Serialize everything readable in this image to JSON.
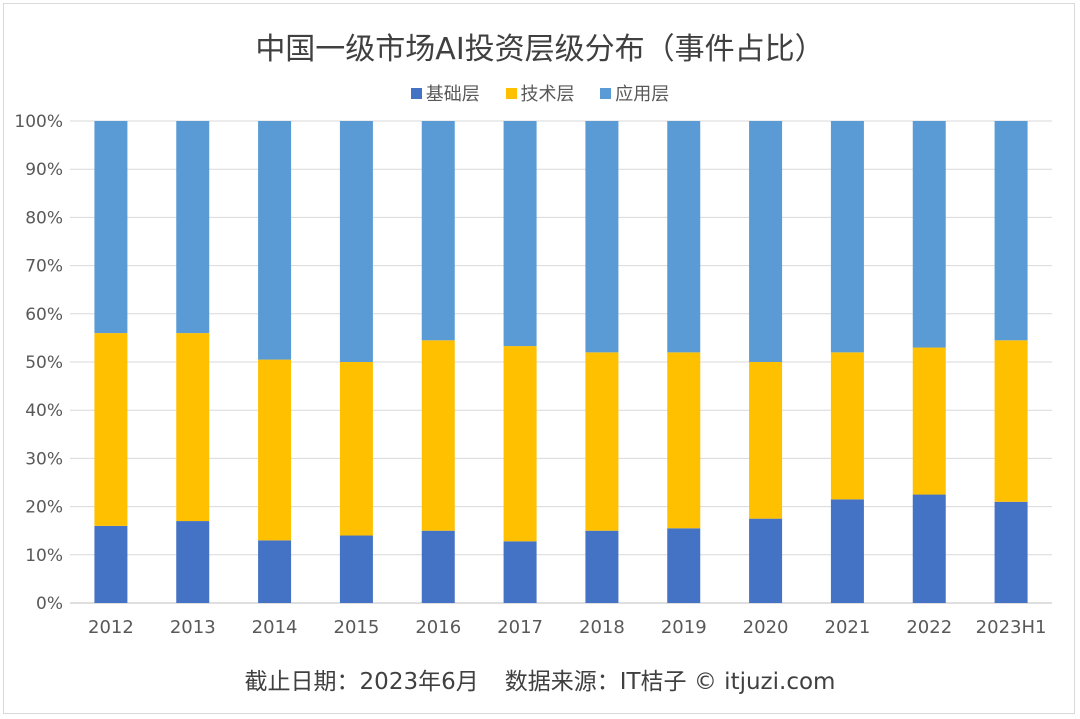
{
  "chart_data": {
    "type": "bar",
    "stacked": true,
    "title": "中国一级市场AI投资层级分布（事件占比）",
    "categories": [
      "2012",
      "2013",
      "2014",
      "2015",
      "2016",
      "2017",
      "2018",
      "2019",
      "2020",
      "2021",
      "2022",
      "2023H1"
    ],
    "series": [
      {
        "name": "基础层",
        "color": "#4472c4",
        "values": [
          16,
          17,
          13,
          14,
          15,
          12.8,
          15,
          15.5,
          17.5,
          21.5,
          22.5,
          21
        ]
      },
      {
        "name": "技术层",
        "color": "#ffc000",
        "values": [
          40,
          39,
          37.5,
          36,
          39.5,
          40.5,
          37,
          36.5,
          32.5,
          30.5,
          30.5,
          33.5
        ]
      },
      {
        "name": "应用层",
        "color": "#5b9bd5",
        "values": [
          44,
          44,
          49.5,
          50,
          45.5,
          46.7,
          48,
          48,
          50,
          48,
          47,
          45.5
        ]
      }
    ],
    "yticks": [
      "0%",
      "10%",
      "20%",
      "30%",
      "40%",
      "50%",
      "60%",
      "70%",
      "80%",
      "90%",
      "100%"
    ],
    "ylim": [
      0,
      100
    ],
    "grid": true,
    "legend_position": "top"
  },
  "footer": {
    "date_text": "截止日期：2023年6月",
    "source_text": "数据来源：IT桔子 © itjuzi.com"
  }
}
